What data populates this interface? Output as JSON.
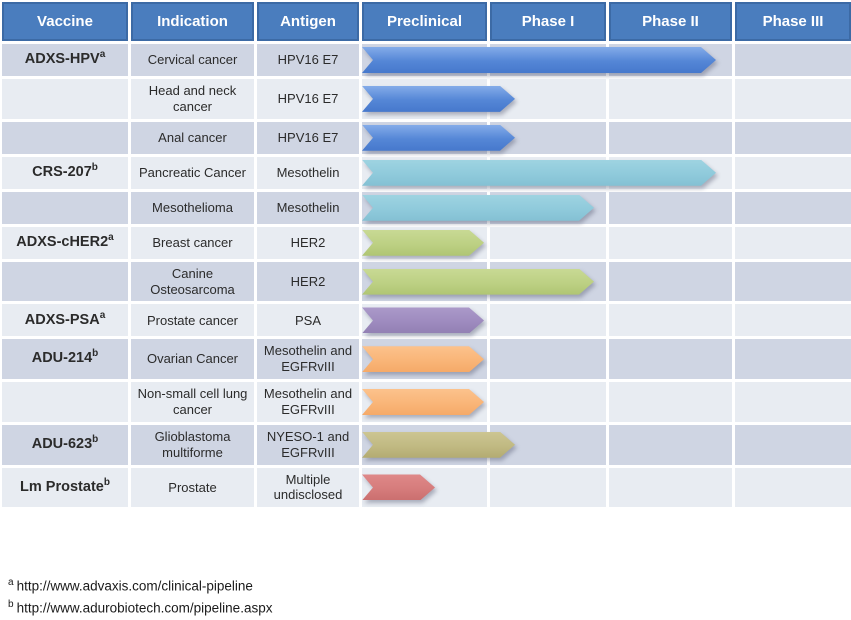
{
  "colors": {
    "header_bg": "#4a7dbe",
    "header_border": "#3c6aa5",
    "row_dark": "#cfd5e3",
    "row_light": "#e8ecf2",
    "text": "#2b2b2b",
    "arrow": {
      "blue": [
        "#84ace9",
        "#5486d6",
        "#4678cc"
      ],
      "ltblue": [
        "#9ed3e1",
        "#8fcadb",
        "#83c0d3"
      ],
      "green": [
        "#c8d994",
        "#bcd083",
        "#afc573"
      ],
      "purple": [
        "#ab99c9",
        "#9e8bbf",
        "#9280b3"
      ],
      "orange": [
        "#fcc28c",
        "#f9b578",
        "#f5a968"
      ],
      "olive": [
        "#ccc592",
        "#c0b982",
        "#b3ab71"
      ],
      "red": [
        "#df8989",
        "#d67c7c",
        "#cb6f6f"
      ]
    }
  },
  "table": {
    "headers": [
      "Vaccine",
      "Indication",
      "Antigen",
      "Preclinical",
      "Phase I",
      "Phase II",
      "Phase III"
    ],
    "rows": [
      {
        "vaccine": "ADXS-HPV",
        "sup": "a",
        "indication": "Cervical cancer",
        "antigen": "HPV16 E7",
        "progress": 2.9,
        "color": "blue",
        "shade": "dark"
      },
      {
        "vaccine": "",
        "sup": "",
        "indication": "Head and neck cancer",
        "antigen": "HPV16 E7",
        "progress": 1.25,
        "color": "blue",
        "shade": "light"
      },
      {
        "vaccine": "",
        "sup": "",
        "indication": "Anal cancer",
        "antigen": "HPV16 E7",
        "progress": 1.25,
        "color": "blue",
        "shade": "dark"
      },
      {
        "vaccine": "CRS-207",
        "sup": "b",
        "indication": "Pancreatic Cancer",
        "antigen": "Mesothelin",
        "progress": 2.9,
        "color": "ltblue",
        "shade": "light"
      },
      {
        "vaccine": "",
        "sup": "",
        "indication": "Mesothelioma",
        "antigen": "Mesothelin",
        "progress": 1.9,
        "color": "ltblue",
        "shade": "dark"
      },
      {
        "vaccine": "ADXS-cHER2",
        "sup": "a",
        "indication": "Breast cancer",
        "antigen": "HER2",
        "progress": 1.0,
        "color": "green",
        "shade": "light"
      },
      {
        "vaccine": "",
        "sup": "",
        "indication": "Canine Osteosarcoma",
        "antigen": "HER2",
        "progress": 1.9,
        "color": "green",
        "shade": "dark"
      },
      {
        "vaccine": "ADXS-PSA",
        "sup": "a",
        "indication": "Prostate cancer",
        "antigen": "PSA",
        "progress": 1.0,
        "color": "purple",
        "shade": "light"
      },
      {
        "vaccine": "ADU-214",
        "sup": "b",
        "indication": "Ovarian Cancer",
        "antigen": "Mesothelin and EGFRvIII",
        "progress": 1.0,
        "color": "orange",
        "shade": "dark"
      },
      {
        "vaccine": "",
        "sup": "",
        "indication": "Non-small cell lung cancer",
        "antigen": "Mesothelin and EGFRvIII",
        "progress": 1.0,
        "color": "orange",
        "shade": "light"
      },
      {
        "vaccine": "ADU-623",
        "sup": "b",
        "indication": "Glioblastoma multiforme",
        "antigen": "NYESO-1 and EGFRvIII",
        "progress": 1.25,
        "color": "olive",
        "shade": "dark"
      },
      {
        "vaccine": "Lm Prostate",
        "sup": "b",
        "indication": "Prostate",
        "antigen": "Multiple undisclosed",
        "progress": 0.6,
        "color": "red",
        "shade": "light"
      }
    ]
  },
  "footnotes": [
    {
      "sup": "a",
      "text": "http://www.advaxis.com/clinical-pipeline"
    },
    {
      "sup": "b",
      "text": "http://www.adurobiotech.com/pipeline.aspx"
    }
  ],
  "chart_data": {
    "type": "table",
    "title": "Clinical pipeline of Listeria-based cancer vaccines by development phase",
    "columns": [
      "Vaccine",
      "Indication",
      "Antigen",
      "Preclinical",
      "Phase I",
      "Phase II",
      "Phase III"
    ],
    "phase_scale": [
      "Preclinical",
      "Phase I",
      "Phase II",
      "Phase III"
    ],
    "phase_axis_note": "progress_phases: 0-1 = Preclinical, 1-2 = Phase I, 2-3 = Phase II, 3-4 = Phase III",
    "rows": [
      {
        "vaccine": "ADXS-HPV (a)",
        "indication": "Cervical cancer",
        "antigen": "HPV16 E7",
        "progress_phases": 2.9,
        "reached": "Phase II",
        "arrow_color": "blue"
      },
      {
        "vaccine": "ADXS-HPV (a)",
        "indication": "Head and neck cancer",
        "antigen": "HPV16 E7",
        "progress_phases": 1.25,
        "reached": "Phase I",
        "arrow_color": "blue"
      },
      {
        "vaccine": "ADXS-HPV (a)",
        "indication": "Anal cancer",
        "antigen": "HPV16 E7",
        "progress_phases": 1.25,
        "reached": "Phase I",
        "arrow_color": "blue"
      },
      {
        "vaccine": "CRS-207 (b)",
        "indication": "Pancreatic Cancer",
        "antigen": "Mesothelin",
        "progress_phases": 2.9,
        "reached": "Phase II",
        "arrow_color": "light-blue"
      },
      {
        "vaccine": "CRS-207 (b)",
        "indication": "Mesothelioma",
        "antigen": "Mesothelin",
        "progress_phases": 1.9,
        "reached": "Phase I",
        "arrow_color": "light-blue"
      },
      {
        "vaccine": "ADXS-cHER2 (a)",
        "indication": "Breast cancer",
        "antigen": "HER2",
        "progress_phases": 1.0,
        "reached": "Preclinical",
        "arrow_color": "green"
      },
      {
        "vaccine": "ADXS-cHER2 (a)",
        "indication": "Canine Osteosarcoma",
        "antigen": "HER2",
        "progress_phases": 1.9,
        "reached": "Phase I",
        "arrow_color": "green"
      },
      {
        "vaccine": "ADXS-PSA (a)",
        "indication": "Prostate cancer",
        "antigen": "PSA",
        "progress_phases": 1.0,
        "reached": "Preclinical",
        "arrow_color": "purple"
      },
      {
        "vaccine": "ADU-214 (b)",
        "indication": "Ovarian Cancer",
        "antigen": "Mesothelin and EGFRvIII",
        "progress_phases": 1.0,
        "reached": "Preclinical",
        "arrow_color": "orange"
      },
      {
        "vaccine": "ADU-214 (b)",
        "indication": "Non-small cell lung cancer",
        "antigen": "Mesothelin and EGFRvIII",
        "progress_phases": 1.0,
        "reached": "Preclinical",
        "arrow_color": "orange"
      },
      {
        "vaccine": "ADU-623 (b)",
        "indication": "Glioblastoma multiforme",
        "antigen": "NYESO-1 and EGFRvIII",
        "progress_phases": 1.25,
        "reached": "Phase I",
        "arrow_color": "olive"
      },
      {
        "vaccine": "Lm Prostate (b)",
        "indication": "Prostate",
        "antigen": "Multiple undisclosed",
        "progress_phases": 0.6,
        "reached": "Preclinical",
        "arrow_color": "red"
      }
    ],
    "footnotes": [
      "a: http://www.advaxis.com/clinical-pipeline",
      "b: http://www.adurobiotech.com/pipeline.aspx"
    ]
  }
}
